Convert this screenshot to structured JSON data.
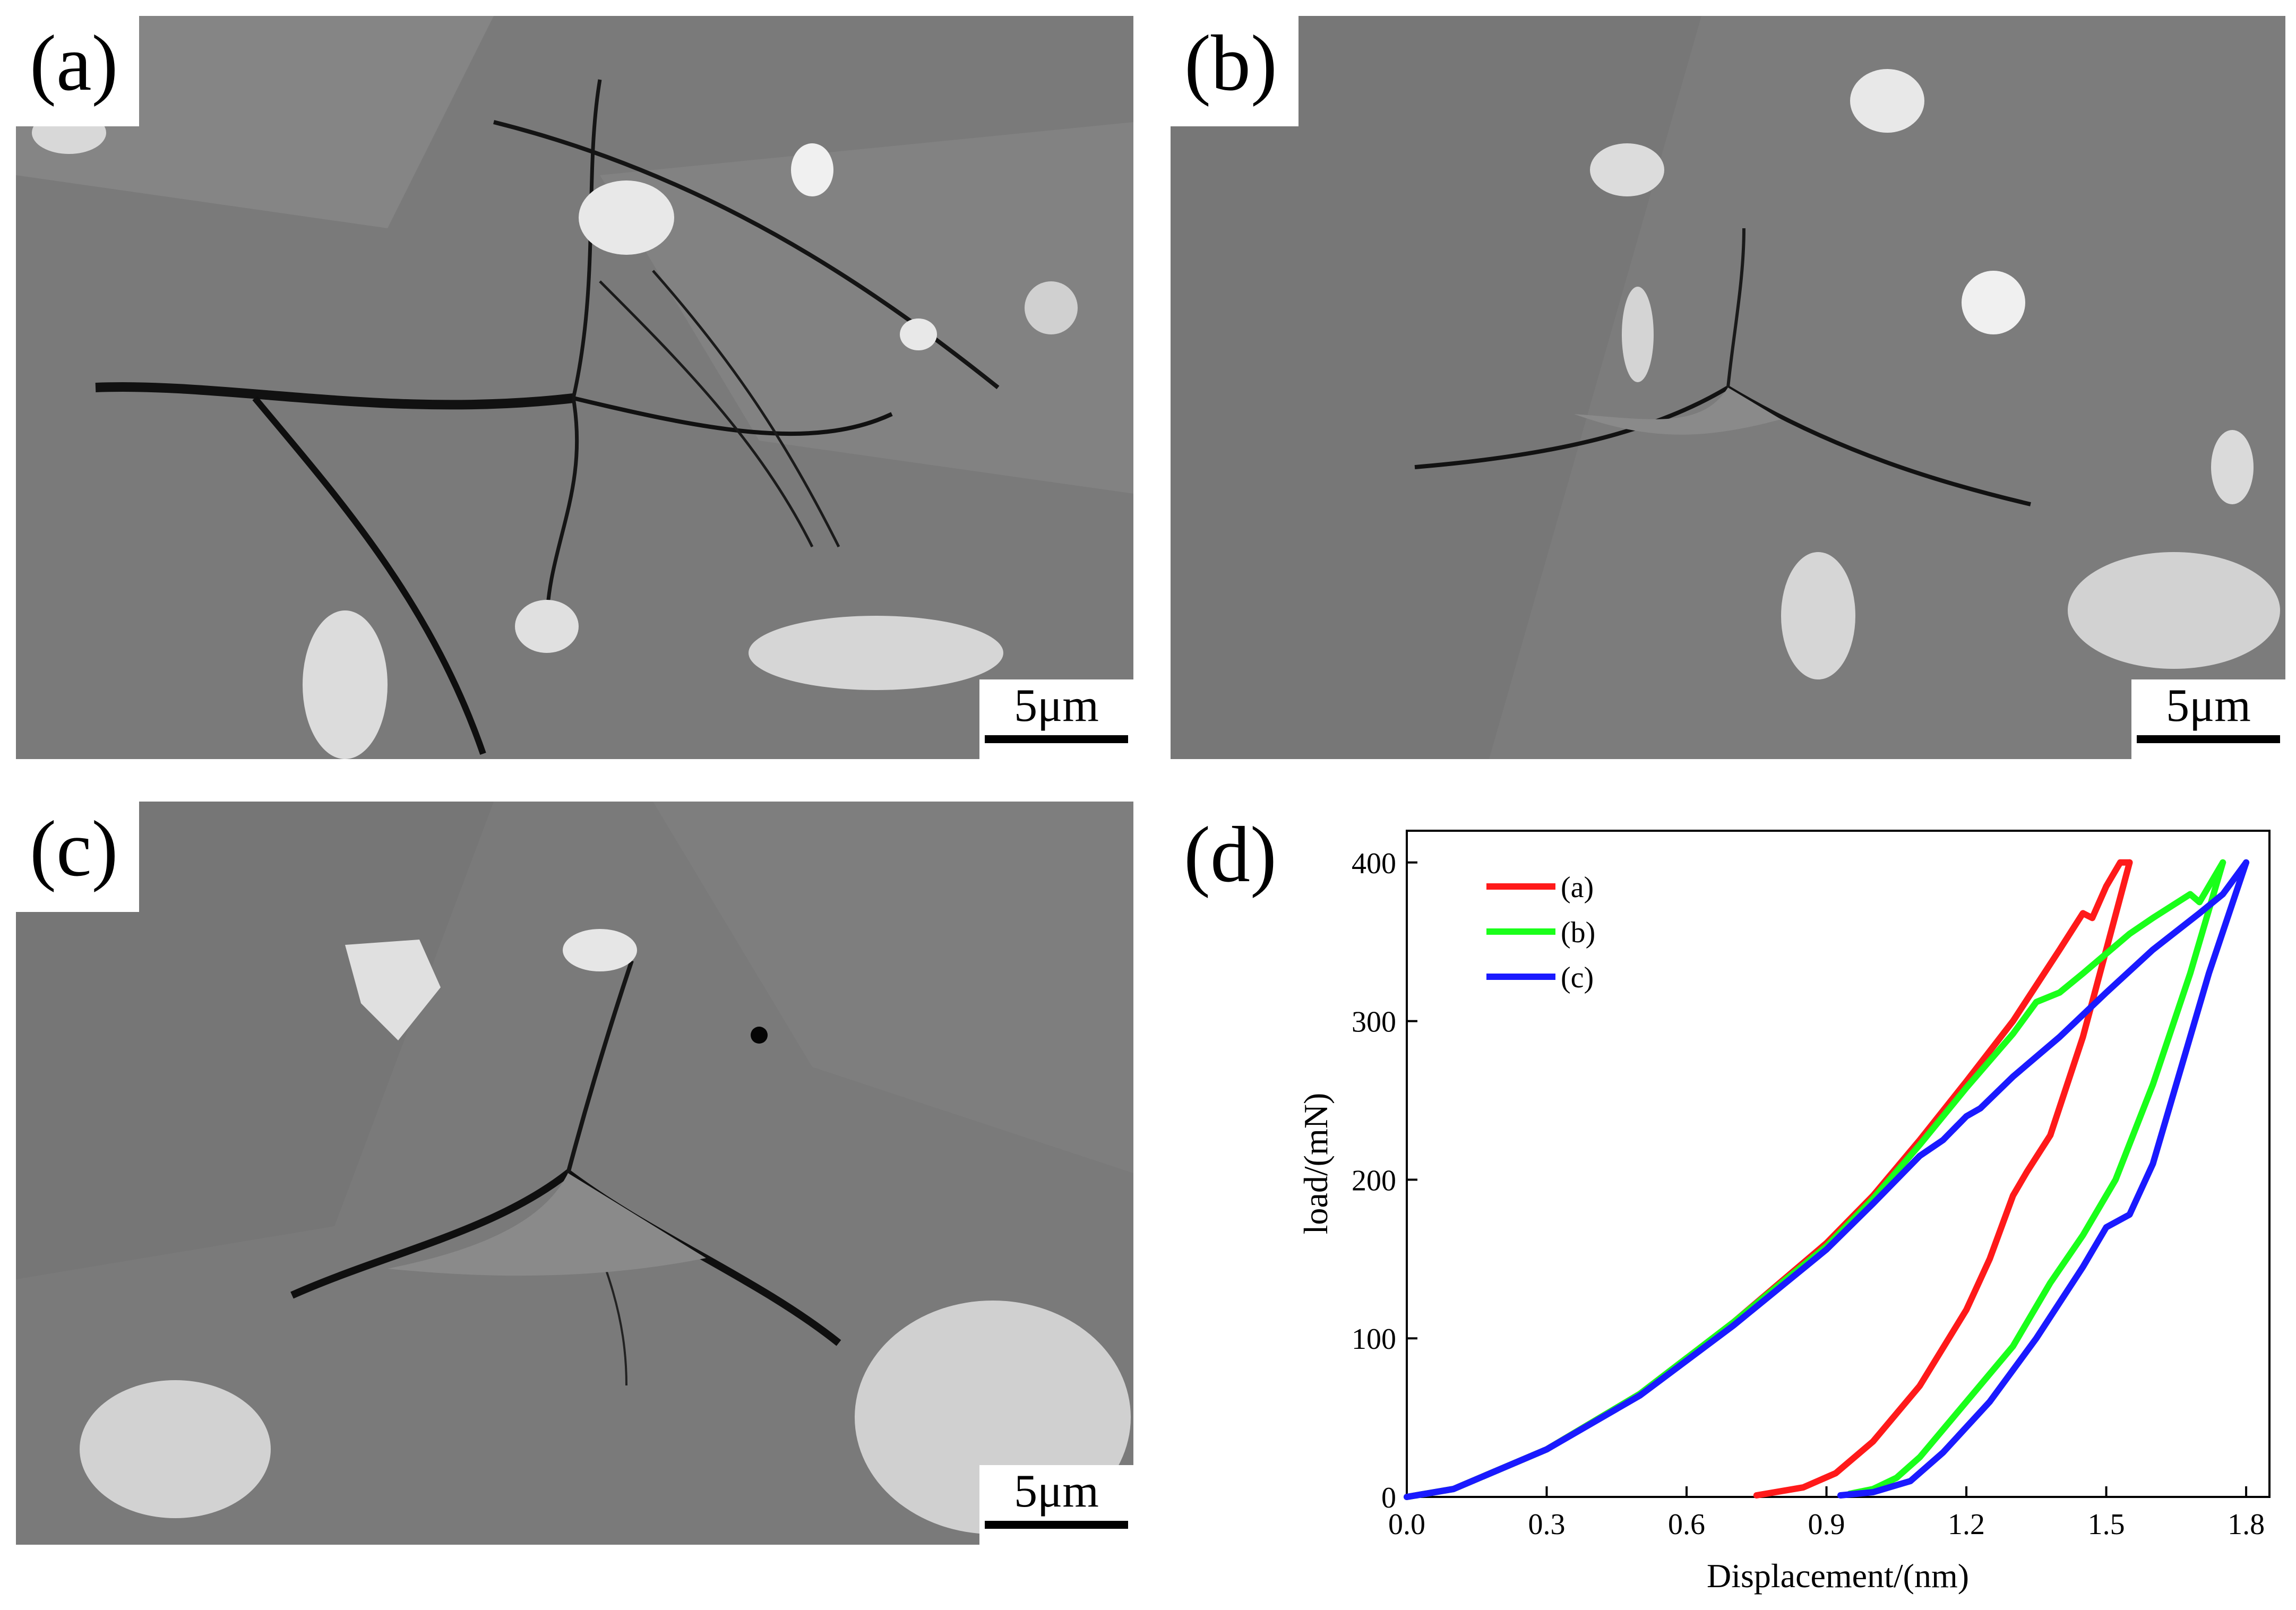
{
  "panels": [
    {
      "label": "(a)",
      "scale": "5μm"
    },
    {
      "label": "(b)",
      "scale": "5μm"
    },
    {
      "label": "(c)",
      "scale": "5μm"
    },
    {
      "label": "(d)"
    }
  ],
  "chart_data": {
    "type": "line",
    "xlabel": "Displacement/(nm)",
    "ylabel": "load/(mN)",
    "xlim": [
      0.0,
      1.85
    ],
    "ylim": [
      0,
      420
    ],
    "xticks": [
      "0.0",
      "0.3",
      "0.6",
      "0.9",
      "1.2",
      "1.5",
      "1.8"
    ],
    "yticks": [
      "0",
      "100",
      "200",
      "300",
      "400"
    ],
    "legend_position": "top-left",
    "series": [
      {
        "name": "(a)",
        "color": "#ff1a1a",
        "loading": [
          [
            0,
            0
          ],
          [
            0.1,
            5
          ],
          [
            0.3,
            30
          ],
          [
            0.5,
            65
          ],
          [
            0.7,
            110
          ],
          [
            0.9,
            160
          ],
          [
            1.0,
            190
          ],
          [
            1.1,
            225
          ],
          [
            1.2,
            262
          ],
          [
            1.3,
            300
          ],
          [
            1.4,
            345
          ],
          [
            1.45,
            368
          ],
          [
            1.47,
            365
          ],
          [
            1.5,
            385
          ],
          [
            1.53,
            400
          ],
          [
            1.55,
            400
          ]
        ],
        "unloading": [
          [
            1.55,
            400
          ],
          [
            1.5,
            345
          ],
          [
            1.45,
            290
          ],
          [
            1.38,
            228
          ],
          [
            1.33,
            205
          ],
          [
            1.3,
            190
          ],
          [
            1.25,
            150
          ],
          [
            1.2,
            118
          ],
          [
            1.1,
            70
          ],
          [
            1.0,
            35
          ],
          [
            0.92,
            15
          ],
          [
            0.85,
            6
          ],
          [
            0.75,
            1
          ]
        ]
      },
      {
        "name": "(b)",
        "color": "#1aff1a",
        "loading": [
          [
            0,
            0
          ],
          [
            0.1,
            5
          ],
          [
            0.3,
            30
          ],
          [
            0.5,
            65
          ],
          [
            0.7,
            110
          ],
          [
            0.9,
            158
          ],
          [
            1.0,
            188
          ],
          [
            1.1,
            222
          ],
          [
            1.2,
            258
          ],
          [
            1.3,
            292
          ],
          [
            1.35,
            312
          ],
          [
            1.4,
            318
          ],
          [
            1.45,
            330
          ],
          [
            1.55,
            355
          ],
          [
            1.6,
            365
          ],
          [
            1.68,
            380
          ],
          [
            1.7,
            375
          ],
          [
            1.75,
            400
          ]
        ],
        "unloading": [
          [
            1.75,
            400
          ],
          [
            1.68,
            330
          ],
          [
            1.6,
            260
          ],
          [
            1.52,
            200
          ],
          [
            1.45,
            165
          ],
          [
            1.38,
            135
          ],
          [
            1.3,
            95
          ],
          [
            1.2,
            60
          ],
          [
            1.1,
            25
          ],
          [
            1.05,
            12
          ],
          [
            1.0,
            5
          ],
          [
            0.95,
            2
          ]
        ]
      },
      {
        "name": "(c)",
        "color": "#1a1aff",
        "loading": [
          [
            0,
            0
          ],
          [
            0.1,
            5
          ],
          [
            0.3,
            30
          ],
          [
            0.5,
            64
          ],
          [
            0.7,
            108
          ],
          [
            0.9,
            156
          ],
          [
            1.0,
            185
          ],
          [
            1.1,
            215
          ],
          [
            1.15,
            225
          ],
          [
            1.2,
            240
          ],
          [
            1.23,
            245
          ],
          [
            1.3,
            265
          ],
          [
            1.4,
            290
          ],
          [
            1.5,
            318
          ],
          [
            1.6,
            345
          ],
          [
            1.7,
            368
          ],
          [
            1.75,
            380
          ],
          [
            1.8,
            400
          ]
        ],
        "unloading": [
          [
            1.8,
            400
          ],
          [
            1.72,
            330
          ],
          [
            1.65,
            260
          ],
          [
            1.6,
            210
          ],
          [
            1.55,
            178
          ],
          [
            1.5,
            170
          ],
          [
            1.45,
            145
          ],
          [
            1.35,
            100
          ],
          [
            1.25,
            60
          ],
          [
            1.15,
            28
          ],
          [
            1.08,
            10
          ],
          [
            1.0,
            3
          ],
          [
            0.93,
            1
          ]
        ]
      }
    ]
  }
}
